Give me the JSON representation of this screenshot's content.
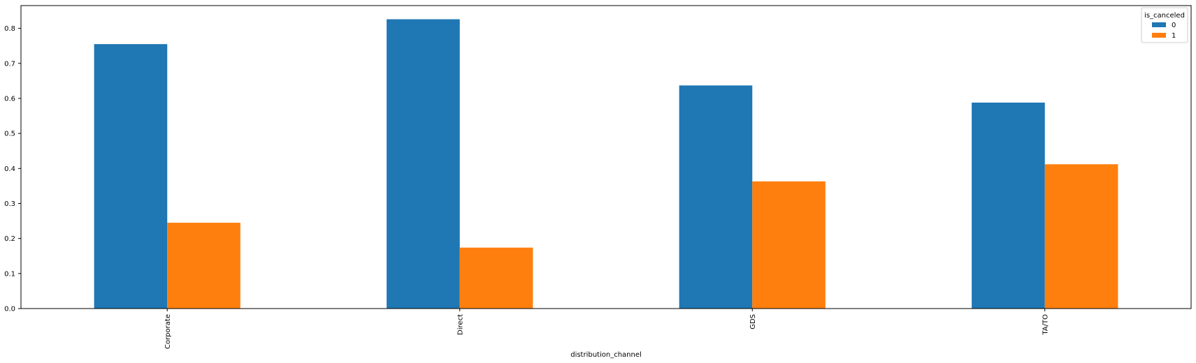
{
  "chart_data": {
    "type": "bar",
    "title": "",
    "xlabel": "distribution_channel",
    "ylabel": "",
    "categories": [
      "Corporate",
      "Direct",
      "GDS",
      "TA/TO"
    ],
    "series": [
      {
        "name": "0",
        "values": [
          0.755,
          0.826,
          0.637,
          0.588
        ]
      },
      {
        "name": "1",
        "values": [
          0.245,
          0.174,
          0.363,
          0.412
        ]
      }
    ],
    "ylim": [
      0.0,
      0.865
    ],
    "yticks": [
      0.0,
      0.1,
      0.2,
      0.3,
      0.4,
      0.5,
      0.6,
      0.7,
      0.8
    ],
    "ytick_labels": [
      "0.0",
      "0.1",
      "0.2",
      "0.3",
      "0.4",
      "0.5",
      "0.6",
      "0.7",
      "0.8"
    ],
    "grid": false,
    "legend": {
      "title": "is_canceled",
      "placement": "top-right"
    },
    "colors": {
      "0": "#1f77b4",
      "1": "#ff7f0e"
    }
  }
}
